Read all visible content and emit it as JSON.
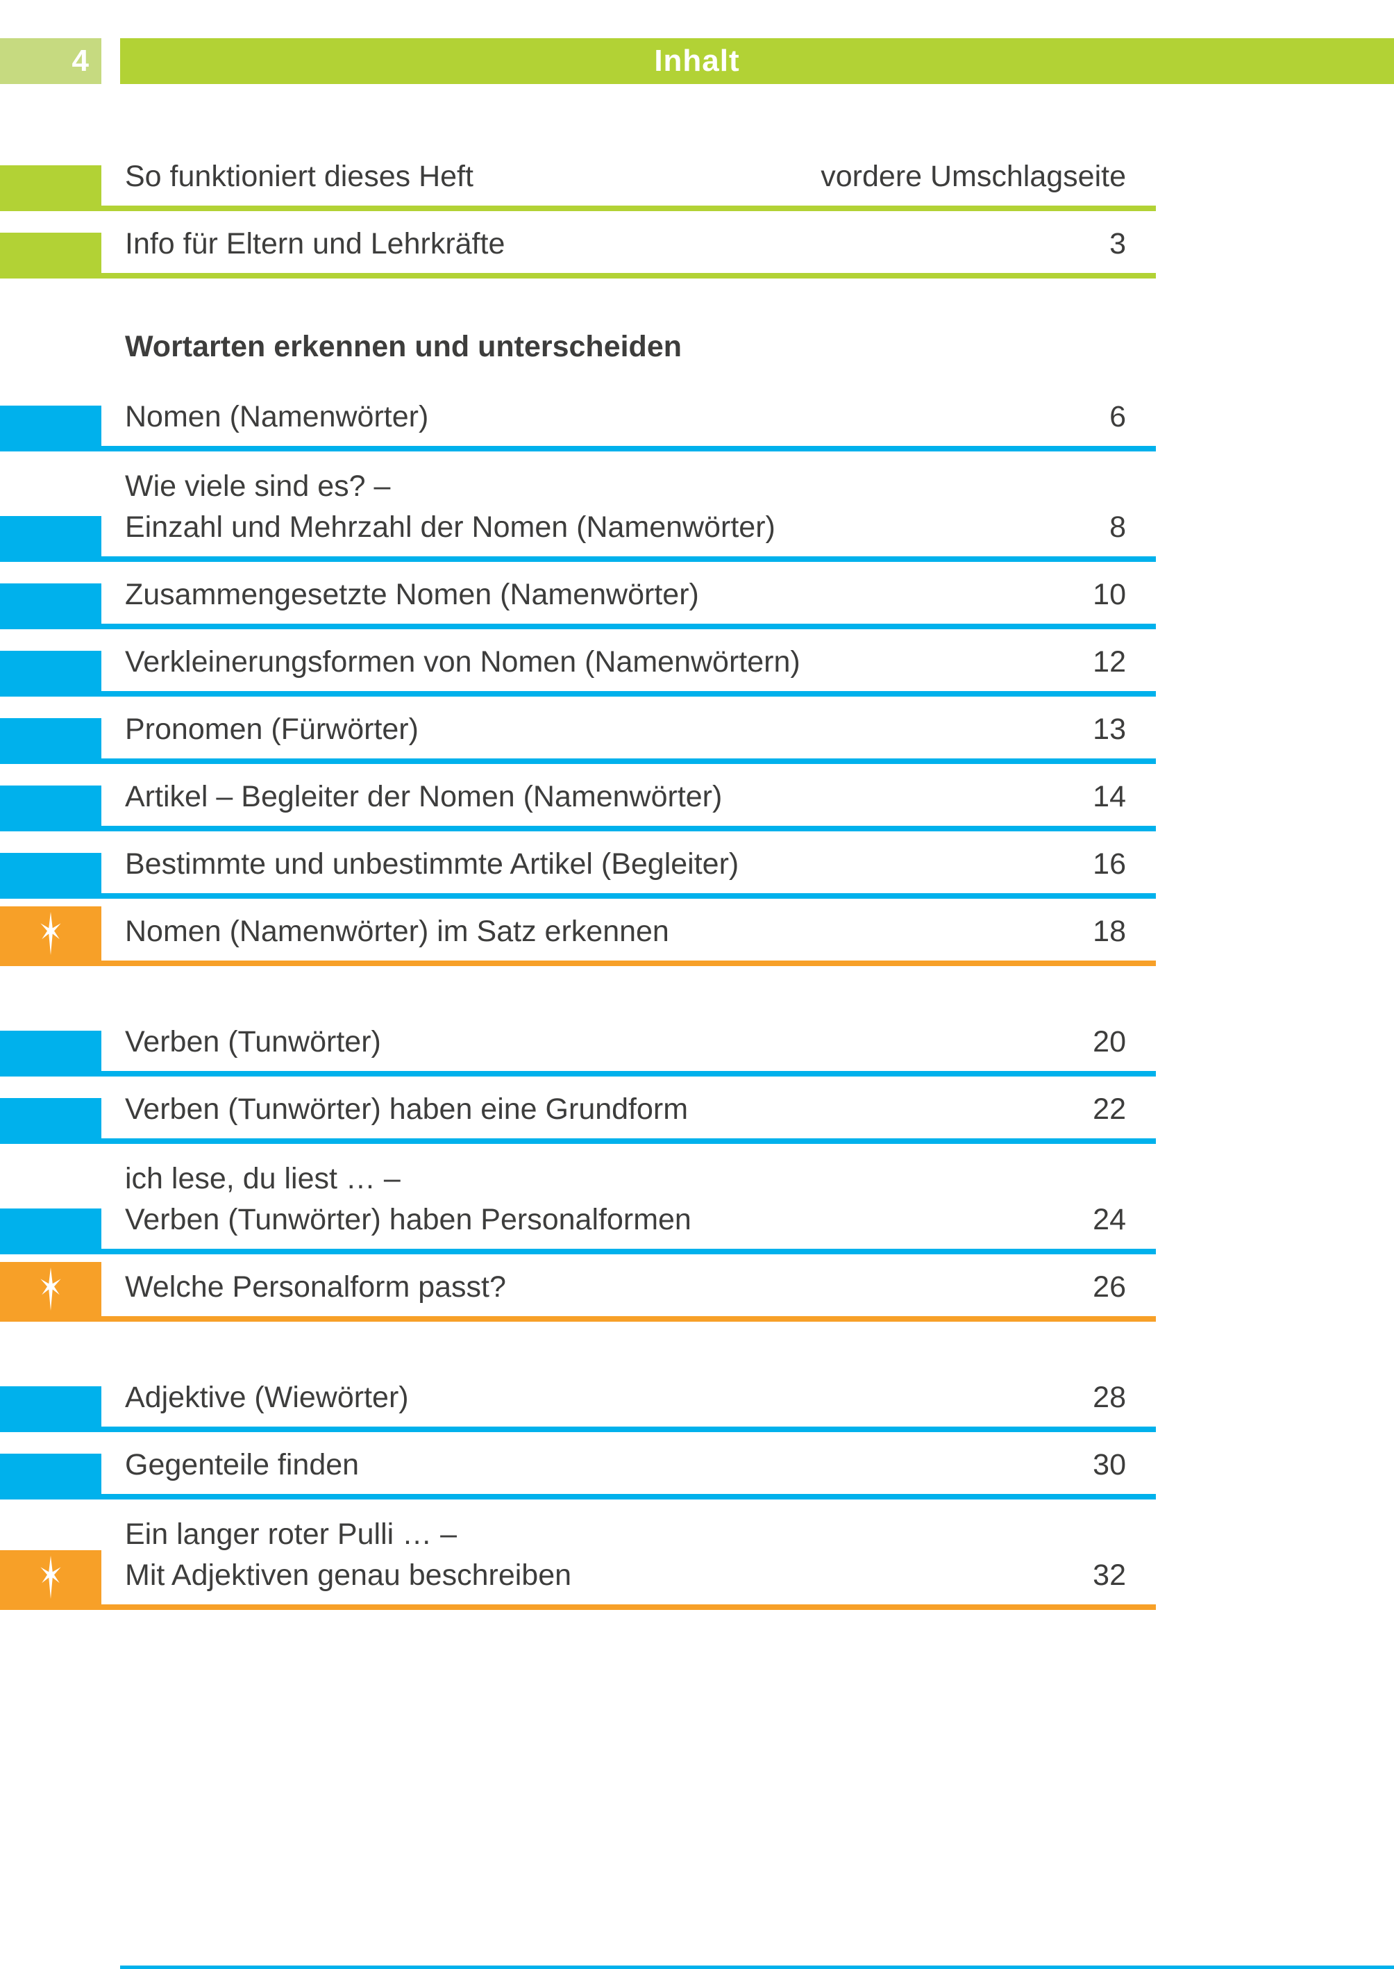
{
  "page": {
    "number": "4",
    "header_title": "Inhalt"
  },
  "colors": {
    "green": "#b2d235",
    "light_green": "#c6da80",
    "blue": "#00b1ec",
    "orange": "#f7a028",
    "text": "#3d3d3c"
  },
  "toc": {
    "items": [
      {
        "type": "entry",
        "marker": "green",
        "title": "So funktioniert dieses Heft",
        "page": "vordere Umschlagseite",
        "first": true
      },
      {
        "type": "entry",
        "marker": "green",
        "title": "Info für Eltern und Lehrkräfte",
        "page": "3"
      },
      {
        "type": "heading",
        "heading": "Wortarten erkennen und unterscheiden"
      },
      {
        "type": "entry",
        "marker": "blue",
        "title": "Nomen (Namenwörter)",
        "page": "6"
      },
      {
        "type": "entry",
        "marker": "blue",
        "line1": "Wie viele sind es? –",
        "title": "Einzahl und Mehrzahl der Nomen (Namenwörter)",
        "page": "8"
      },
      {
        "type": "entry",
        "marker": "blue",
        "title": "Zusammengesetzte Nomen (Namenwörter)",
        "page": "10"
      },
      {
        "type": "entry",
        "marker": "blue",
        "title": "Verkleinerungsformen von Nomen (Namenwörtern)",
        "page": "12"
      },
      {
        "type": "entry",
        "marker": "blue",
        "title": "Pronomen (Fürwörter)",
        "page": "13"
      },
      {
        "type": "entry",
        "marker": "blue",
        "title": "Artikel – Begleiter der Nomen (Namenwörter)",
        "page": "14"
      },
      {
        "type": "entry",
        "marker": "blue",
        "title": "Bestimmte und unbestimmte Artikel (Begleiter)",
        "page": "16"
      },
      {
        "type": "entry",
        "marker": "star",
        "title": "Nomen (Namenwörter) im Satz erkennen",
        "page": "18"
      },
      {
        "type": "entry",
        "marker": "blue",
        "gap": true,
        "title": "Verben (Tunwörter)",
        "page": "20"
      },
      {
        "type": "entry",
        "marker": "blue",
        "title": "Verben (Tunwörter) haben eine Grundform",
        "page": "22"
      },
      {
        "type": "entry",
        "marker": "blue",
        "line1": "ich lese, du liest … –",
        "title": "Verben (Tunwörter) haben Personalformen",
        "page": "24"
      },
      {
        "type": "entry",
        "marker": "star",
        "title": "Welche Personalform passt?",
        "page": "26"
      },
      {
        "type": "entry",
        "marker": "blue",
        "gap": true,
        "title": "Adjektive (Wiewörter)",
        "page": "28"
      },
      {
        "type": "entry",
        "marker": "blue",
        "title": "Gegenteile finden",
        "page": "30"
      },
      {
        "type": "entry",
        "marker": "star",
        "line1": "Ein langer roter Pulli … –",
        "title": "Mit Adjektiven genau beschreiben",
        "page": "32"
      }
    ]
  }
}
